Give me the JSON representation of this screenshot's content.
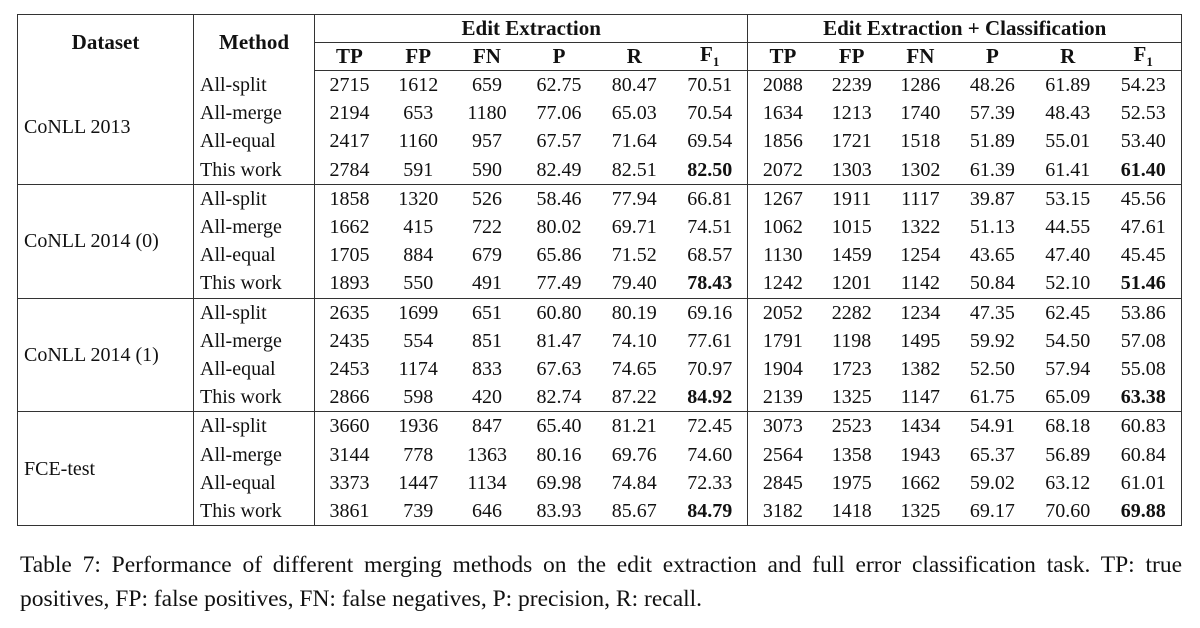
{
  "table": {
    "headers": {
      "dataset": "Dataset",
      "method": "Method",
      "group1": "Edit Extraction",
      "group2": "Edit Extraction + Classification",
      "cols": [
        "TP",
        "FP",
        "FN",
        "P",
        "R",
        "F"
      ],
      "f_sub": "1"
    },
    "groups": [
      {
        "dataset": "CoNLL 2013",
        "rows": [
          {
            "method": "All-split",
            "v": [
              "2715",
              "1612",
              "659",
              "62.75",
              "80.47",
              "70.51",
              "2088",
              "2239",
              "1286",
              "48.26",
              "61.89",
              "54.23"
            ]
          },
          {
            "method": "All-merge",
            "v": [
              "2194",
              "653",
              "1180",
              "77.06",
              "65.03",
              "70.54",
              "1634",
              "1213",
              "1740",
              "57.39",
              "48.43",
              "52.53"
            ]
          },
          {
            "method": "All-equal",
            "v": [
              "2417",
              "1160",
              "957",
              "67.57",
              "71.64",
              "69.54",
              "1856",
              "1721",
              "1518",
              "51.89",
              "55.01",
              "53.40"
            ]
          },
          {
            "method": "This work",
            "v": [
              "2784",
              "591",
              "590",
              "82.49",
              "82.51",
              "82.50",
              "2072",
              "1303",
              "1302",
              "61.39",
              "61.41",
              "61.40"
            ]
          }
        ]
      },
      {
        "dataset": "CoNLL 2014 (0)",
        "rows": [
          {
            "method": "All-split",
            "v": [
              "1858",
              "1320",
              "526",
              "58.46",
              "77.94",
              "66.81",
              "1267",
              "1911",
              "1117",
              "39.87",
              "53.15",
              "45.56"
            ]
          },
          {
            "method": "All-merge",
            "v": [
              "1662",
              "415",
              "722",
              "80.02",
              "69.71",
              "74.51",
              "1062",
              "1015",
              "1322",
              "51.13",
              "44.55",
              "47.61"
            ]
          },
          {
            "method": "All-equal",
            "v": [
              "1705",
              "884",
              "679",
              "65.86",
              "71.52",
              "68.57",
              "1130",
              "1459",
              "1254",
              "43.65",
              "47.40",
              "45.45"
            ]
          },
          {
            "method": "This work",
            "v": [
              "1893",
              "550",
              "491",
              "77.49",
              "79.40",
              "78.43",
              "1242",
              "1201",
              "1142",
              "50.84",
              "52.10",
              "51.46"
            ]
          }
        ]
      },
      {
        "dataset": "CoNLL 2014 (1)",
        "rows": [
          {
            "method": "All-split",
            "v": [
              "2635",
              "1699",
              "651",
              "60.80",
              "80.19",
              "69.16",
              "2052",
              "2282",
              "1234",
              "47.35",
              "62.45",
              "53.86"
            ]
          },
          {
            "method": "All-merge",
            "v": [
              "2435",
              "554",
              "851",
              "81.47",
              "74.10",
              "77.61",
              "1791",
              "1198",
              "1495",
              "59.92",
              "54.50",
              "57.08"
            ]
          },
          {
            "method": "All-equal",
            "v": [
              "2453",
              "1174",
              "833",
              "67.63",
              "74.65",
              "70.97",
              "1904",
              "1723",
              "1382",
              "52.50",
              "57.94",
              "55.08"
            ]
          },
          {
            "method": "This work",
            "v": [
              "2866",
              "598",
              "420",
              "82.74",
              "87.22",
              "84.92",
              "2139",
              "1325",
              "1147",
              "61.75",
              "65.09",
              "63.38"
            ]
          }
        ]
      },
      {
        "dataset": "FCE-test",
        "rows": [
          {
            "method": "All-split",
            "v": [
              "3660",
              "1936",
              "847",
              "65.40",
              "81.21",
              "72.45",
              "3073",
              "2523",
              "1434",
              "54.91",
              "68.18",
              "60.83"
            ]
          },
          {
            "method": "All-merge",
            "v": [
              "3144",
              "778",
              "1363",
              "80.16",
              "69.76",
              "74.60",
              "2564",
              "1358",
              "1943",
              "65.37",
              "56.89",
              "60.84"
            ]
          },
          {
            "method": "All-equal",
            "v": [
              "3373",
              "1447",
              "1134",
              "69.98",
              "74.84",
              "72.33",
              "2845",
              "1975",
              "1662",
              "59.02",
              "63.12",
              "61.01"
            ]
          },
          {
            "method": "This work",
            "v": [
              "3861",
              "739",
              "646",
              "83.93",
              "85.67",
              "84.79",
              "3182",
              "1418",
              "1325",
              "69.17",
              "70.60",
              "69.88"
            ]
          }
        ]
      }
    ],
    "bold_cells": [
      5,
      11
    ]
  },
  "caption": {
    "text": "Table 7: Performance of different merging methods on the edit extraction and full error classification task. TP: true positives, FP: false positives, FN: false negatives, P: precision, R: recall."
  }
}
